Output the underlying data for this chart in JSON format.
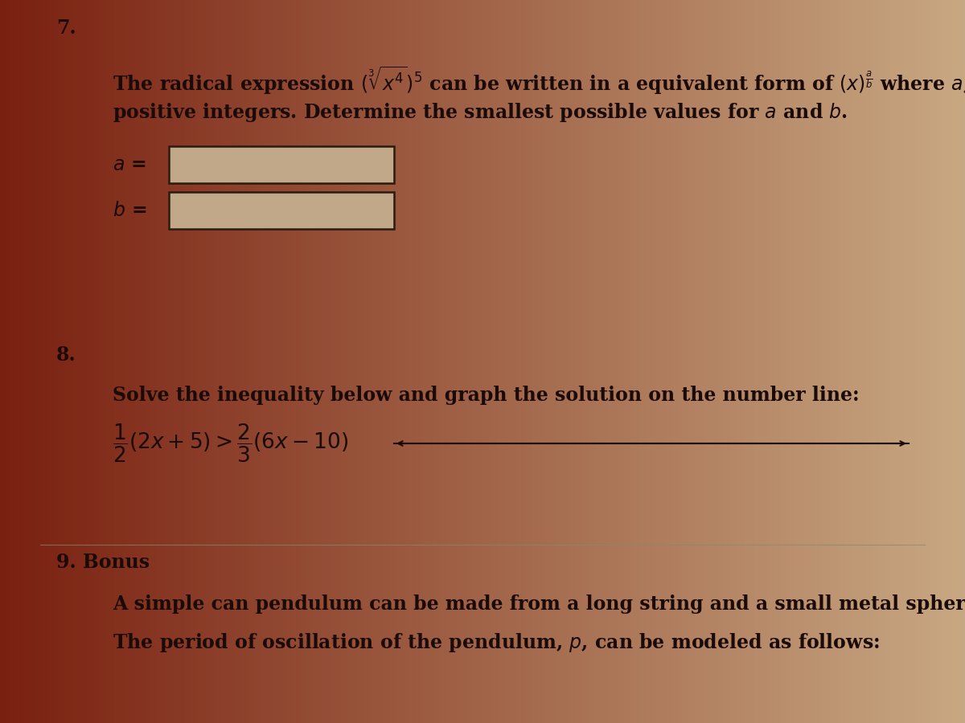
{
  "bg_color_left": "#7a2010",
  "bg_color_right": "#c8a882",
  "text_color": "#1a0a08",
  "q7_number": "7.",
  "q8_number": "8.",
  "q9_number": "9. Bonus",
  "font_size_main": 17,
  "font_size_ineq": 19,
  "font_size_num": 16,
  "line1_q7": "The radical expression $(\\sqrt[3]{x^4})^5$ can be written in a equivalent form of $(x)^{\\frac{a}{b}}$ where $a$,",
  "line2_q7": "positive integers. Determine the smallest possible values for  $a$  and  $b$.",
  "q8_instruct": "Solve the inequality below and graph the solution on the number line:",
  "q9_line1": "A simple can pendulum can be made from a long string and a small metal sphere.",
  "q9_line2": "The period of oscillation of the pendulum, $p$, can be modeled as follows:"
}
